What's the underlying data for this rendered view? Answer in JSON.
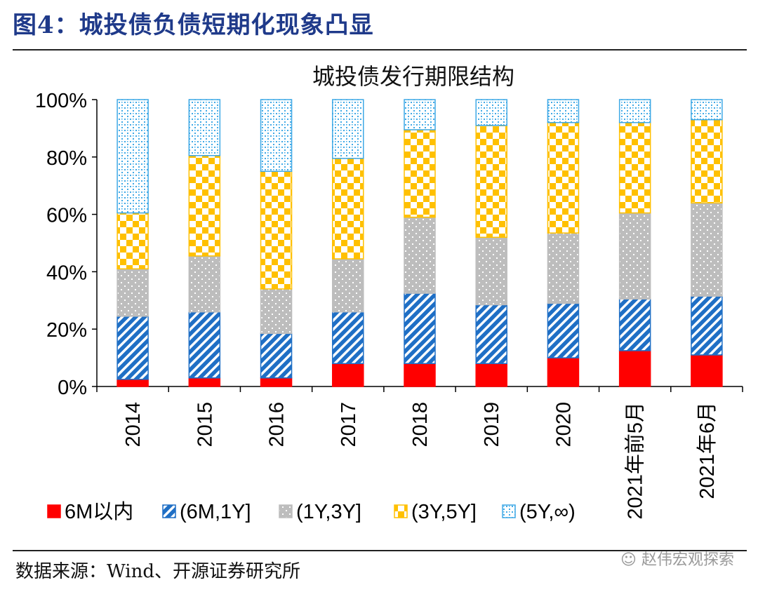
{
  "figure": {
    "title": "图4：城投债负债短期化现象凸显",
    "source": "数据来源：Wind、开源证券研究所",
    "watermark": "赵伟宏观探索"
  },
  "chart_data": {
    "type": "bar",
    "stacked": true,
    "title": "城投债发行期限结构",
    "xlabel": "",
    "ylabel": "",
    "ylim": [
      0,
      100
    ],
    "yticks": [
      "0%",
      "20%",
      "40%",
      "60%",
      "80%",
      "100%"
    ],
    "categories": [
      "2014",
      "2015",
      "2016",
      "2017",
      "2018",
      "2019",
      "2020",
      "2021年前5月",
      "2021年6月"
    ],
    "legend_position": "bottom",
    "series": [
      {
        "name": "6M以内",
        "color": "#ff0000",
        "pattern": "solid",
        "values": [
          2.5,
          3.0,
          3.0,
          8.0,
          8.0,
          8.0,
          10.0,
          12.5,
          11.0
        ]
      },
      {
        "name": "(6M,1Y]",
        "color": "#1f6fc5",
        "pattern": "diagonal",
        "values": [
          22.0,
          23.0,
          15.5,
          18.0,
          24.5,
          20.5,
          19.0,
          18.0,
          20.5
        ]
      },
      {
        "name": "(1Y,3Y]",
        "color": "#bdbdbd",
        "pattern": "dots",
        "values": [
          16.5,
          19.5,
          15.5,
          18.5,
          26.5,
          23.5,
          24.5,
          30.0,
          32.5
        ]
      },
      {
        "name": "(3Y,5Y]",
        "color": "#ffc000",
        "pattern": "checker",
        "values": [
          19.5,
          35.0,
          41.0,
          35.0,
          30.5,
          39.0,
          38.5,
          31.5,
          29.0
        ]
      },
      {
        "name": "(5Y,∞)",
        "color": "#3fa9e6",
        "pattern": "confetti",
        "values": [
          39.5,
          19.5,
          25.0,
          20.5,
          10.5,
          9.0,
          8.0,
          8.0,
          7.0
        ]
      }
    ]
  }
}
